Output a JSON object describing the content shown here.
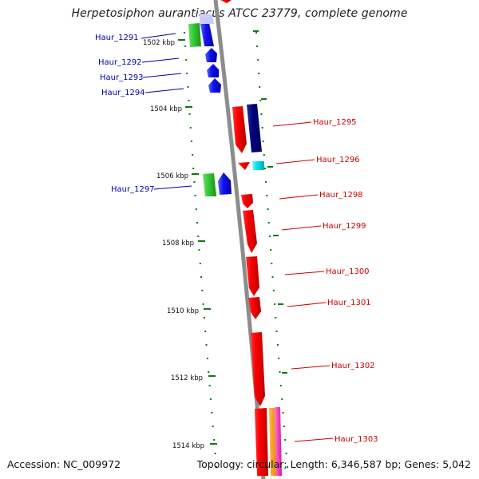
{
  "title": "Herpetosiphon aurantiacus ATCC 23779, complete genome",
  "accession": "Accession: NC_009972",
  "topology": "Topology: circular; Length: 6,346,587 bp; Genes: 5,042",
  "colors": {
    "backbone": "#8c8c8c",
    "tick": "#117711",
    "forward_label": "#cc0000",
    "reverse_label": "#0000aa",
    "red": "#ff0000",
    "blue": "#1111ee",
    "navy": "#000080",
    "green": "#33cc33",
    "cyan": "#00e5ee",
    "orange": "#ff9900",
    "magenta": "#ff33cc"
  },
  "kbp_markers": [
    "1502 kbp",
    "1504 kbp",
    "1506 kbp",
    "1508 kbp",
    "1510 kbp",
    "1512 kbp",
    "1514 kbp"
  ],
  "genes": [
    {
      "label": "Haur_1291",
      "strand": "reverse"
    },
    {
      "label": "Haur_1292",
      "strand": "reverse"
    },
    {
      "label": "Haur_1293",
      "strand": "reverse"
    },
    {
      "label": "Haur_1294",
      "strand": "reverse"
    },
    {
      "label": "Haur_1295",
      "strand": "forward"
    },
    {
      "label": "Haur_1296",
      "strand": "forward"
    },
    {
      "label": "Haur_1297",
      "strand": "reverse"
    },
    {
      "label": "Haur_1298",
      "strand": "forward"
    },
    {
      "label": "Haur_1299",
      "strand": "forward"
    },
    {
      "label": "Haur_1300",
      "strand": "forward"
    },
    {
      "label": "Haur_1301",
      "strand": "forward"
    },
    {
      "label": "Haur_1302",
      "strand": "forward"
    },
    {
      "label": "Haur_1303",
      "strand": "forward"
    }
  ]
}
